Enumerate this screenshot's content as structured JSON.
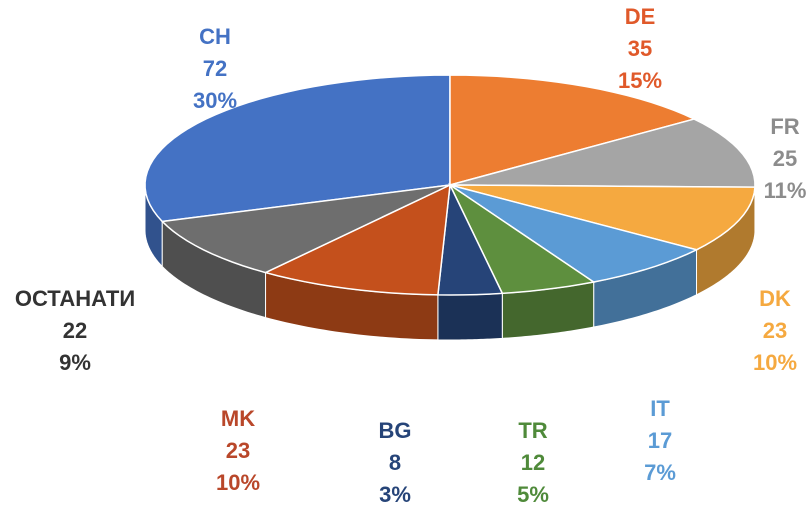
{
  "chart_data": {
    "type": "pie3d",
    "categories": [
      "CH",
      "DE",
      "FR",
      "DK",
      "IT",
      "TR",
      "BG",
      "MK",
      "ОСТАНАТИ"
    ],
    "values": [
      72,
      35,
      25,
      23,
      17,
      12,
      8,
      23,
      22
    ],
    "percent_labels": [
      "30%",
      "15%",
      "11%",
      "10%",
      "7%",
      "5%",
      "3%",
      "10%",
      "9%"
    ],
    "colors": [
      "#4472c4",
      "#ed7d31",
      "#a5a5a5",
      "#f5a940",
      "#5b9bd5",
      "#5e8f3e",
      "#264478",
      "#c4501c",
      "#6e6e6e"
    ],
    "label_colors": [
      "#4472c4",
      "#e0592a",
      "#8c8c8c",
      "#f5a940",
      "#5b9bd5",
      "#4f8a3a",
      "#264478",
      "#b9472a",
      "#333333"
    ]
  }
}
